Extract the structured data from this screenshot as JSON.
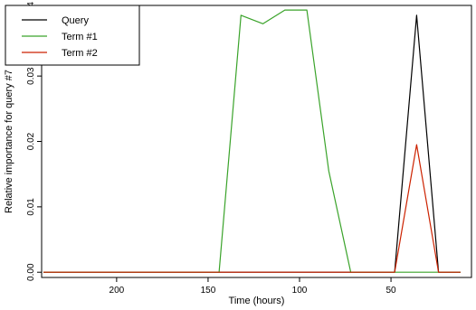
{
  "chart_data": {
    "type": "line",
    "title": "",
    "xlabel": "Time (hours)",
    "ylabel": "Relative importance for query #7",
    "xlim": [
      241,
      6
    ],
    "ylim": [
      -0.0008,
      0.0408
    ],
    "x_reversed": true,
    "x_ticks": [
      200,
      150,
      100,
      50
    ],
    "y_ticks": [
      0.0,
      0.01,
      0.02,
      0.03,
      0.04
    ],
    "y_tick_labels": [
      "0.00",
      "0.01",
      "0.02",
      "0.03",
      "0.04"
    ],
    "grid": false,
    "legend_position": "top-left",
    "series": [
      {
        "name": "Query",
        "color": "#000000",
        "x": [
          240,
          228,
          216,
          204,
          192,
          180,
          168,
          156,
          144,
          132,
          120,
          108,
          96,
          84,
          72,
          60,
          48,
          36,
          24,
          12
        ],
        "values": [
          0,
          0,
          0,
          0,
          0,
          0,
          0,
          0,
          0,
          0,
          0,
          0,
          0,
          0,
          0,
          0,
          0,
          0.0393,
          0,
          0
        ]
      },
      {
        "name": "Term #1",
        "color": "#3aa32a",
        "x": [
          240,
          228,
          216,
          204,
          192,
          180,
          168,
          156,
          144,
          132,
          120,
          108,
          96,
          84,
          72,
          60,
          48,
          36,
          24,
          12
        ],
        "values": [
          0,
          0,
          0,
          0,
          0,
          0,
          0,
          0,
          0,
          0.0393,
          0.038,
          0.0401,
          0.0401,
          0.0155,
          0,
          0,
          0,
          0,
          0,
          0
        ]
      },
      {
        "name": "Term #2",
        "color": "#cc2200",
        "x": [
          240,
          228,
          216,
          204,
          192,
          180,
          168,
          156,
          144,
          132,
          120,
          108,
          96,
          84,
          72,
          60,
          48,
          36,
          24,
          12
        ],
        "values": [
          0,
          0,
          0,
          0,
          0,
          0,
          0,
          0,
          0,
          0,
          0,
          0,
          0,
          0,
          0,
          0,
          0,
          0.0195,
          0,
          0
        ]
      }
    ]
  }
}
